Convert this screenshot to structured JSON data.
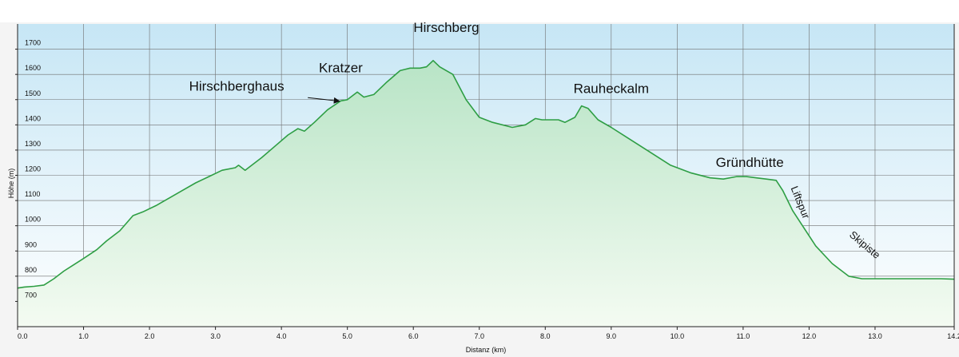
{
  "chart_data": {
    "type": "area",
    "title": "",
    "xlabel": "Distanz  (km)",
    "ylabel": "Höhe (m)",
    "xlim": [
      0,
      14.2
    ],
    "ylim": [
      600,
      1800
    ],
    "grid": true,
    "x_ticks": [
      0,
      1,
      2,
      3,
      4,
      5,
      6,
      7,
      8,
      9,
      10,
      11,
      12,
      13,
      14.2
    ],
    "x_tick_labels": [
      "0.0",
      "1.0",
      "2.0",
      "3.0",
      "4.0",
      "5.0",
      "6.0",
      "7.0",
      "8.0",
      "9.0",
      "10.0",
      "11.0",
      "12.0",
      "13.0",
      "14.2"
    ],
    "y_ticks": [
      700,
      800,
      900,
      1000,
      1100,
      1200,
      1300,
      1400,
      1500,
      1600,
      1700
    ],
    "y_tick_labels": [
      "700",
      "800",
      "900",
      "1000",
      "1100",
      "1200",
      "1300",
      "1400",
      "1500",
      "1600",
      "1700"
    ],
    "colors": {
      "line": "#2e9e44",
      "fill_top": "#b8e4c6",
      "fill_bottom": "#f4fbf2",
      "bg_top": "#c6e6f5",
      "bg_bottom": "#ffffff",
      "grid": "#6e6e6e"
    },
    "series": [
      {
        "x": [
          0,
          0.1,
          0.25,
          0.4,
          0.55,
          0.7,
          0.85,
          1.0,
          1.2,
          1.35,
          1.55,
          1.75,
          1.9,
          2.1,
          2.3,
          2.5,
          2.7,
          2.9,
          3.1,
          3.3,
          3.35,
          3.45,
          3.55,
          3.7,
          3.9,
          4.1,
          4.25,
          4.35,
          4.5,
          4.7,
          4.9,
          5.0,
          5.15,
          5.25,
          5.4,
          5.6,
          5.8,
          5.95,
          6.1,
          6.2,
          6.3,
          6.4,
          6.6,
          6.8,
          7.0,
          7.2,
          7.5,
          7.7,
          7.85,
          7.95,
          8.05,
          8.2,
          8.3,
          8.45,
          8.55,
          8.65,
          8.8,
          9.0,
          9.3,
          9.6,
          9.9,
          10.2,
          10.5,
          10.7,
          10.9,
          11.05,
          11.2,
          11.35,
          11.5,
          11.6,
          11.75,
          11.9,
          12.1,
          12.35,
          12.6,
          12.8,
          13.0,
          13.5,
          14.0,
          14.2
        ],
        "y": [
          753,
          757,
          760,
          765,
          790,
          820,
          845,
          870,
          905,
          940,
          980,
          1040,
          1055,
          1080,
          1110,
          1140,
          1170,
          1195,
          1220,
          1230,
          1240,
          1220,
          1240,
          1270,
          1315,
          1360,
          1385,
          1375,
          1410,
          1460,
          1495,
          1500,
          1530,
          1510,
          1520,
          1570,
          1615,
          1625,
          1625,
          1630,
          1655,
          1630,
          1600,
          1500,
          1430,
          1410,
          1390,
          1400,
          1425,
          1420,
          1420,
          1420,
          1410,
          1430,
          1475,
          1465,
          1420,
          1390,
          1340,
          1290,
          1240,
          1210,
          1190,
          1185,
          1195,
          1195,
          1190,
          1185,
          1180,
          1140,
          1060,
          1000,
          920,
          850,
          800,
          790,
          790,
          790,
          790,
          788
        ]
      }
    ],
    "annotations": [
      {
        "text": "Hirschberg",
        "x": 6.5,
        "y": 1768,
        "anchor": "middle"
      },
      {
        "text": "Kratzer",
        "x": 4.9,
        "y": 1608,
        "anchor": "middle"
      },
      {
        "text": "Hirschberghaus",
        "x": 2.6,
        "y": 1535,
        "anchor": "start"
      },
      {
        "text": "Rauheckalm",
        "x": 9.0,
        "y": 1526,
        "anchor": "middle"
      },
      {
        "text": "Gründhütte",
        "x": 11.1,
        "y": 1233,
        "anchor": "middle"
      }
    ],
    "route_labels": [
      {
        "text": "Liftspur",
        "x": 11.72,
        "y": 1150,
        "angle": 68
      },
      {
        "text": "Skipiste",
        "x": 12.6,
        "y": 960,
        "angle": 40
      }
    ],
    "pointer": {
      "target": "Hirschberghaus",
      "x1": 4.4,
      "y1": 1508,
      "x2": 4.88,
      "y2": 1494
    }
  }
}
